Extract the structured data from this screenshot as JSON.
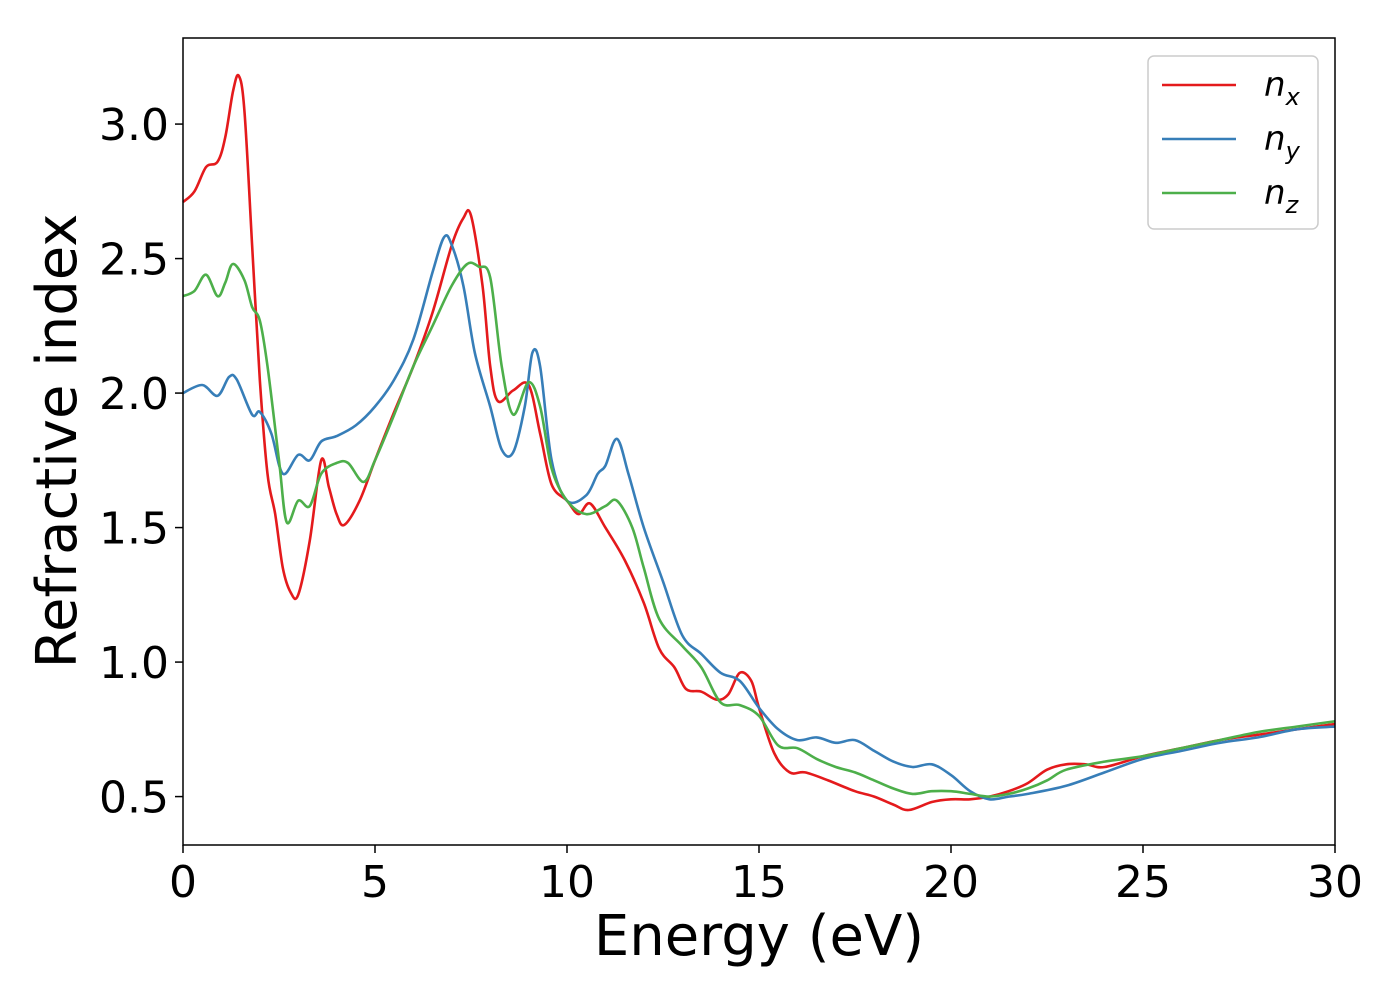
{
  "chart_data": {
    "type": "line",
    "xlabel": "Energy (eV)",
    "ylabel": "Refractive index",
    "xlim": [
      0,
      30
    ],
    "ylim": [
      0.32,
      3.32
    ],
    "xticks": [
      0,
      5,
      10,
      15,
      20,
      25,
      30
    ],
    "xtick_labels": [
      "0",
      "5",
      "10",
      "15",
      "20",
      "25",
      "30"
    ],
    "yticks": [
      0.5,
      1.0,
      1.5,
      2.0,
      2.5,
      3.0
    ],
    "ytick_labels": [
      "0.5",
      "1.0",
      "1.5",
      "2.0",
      "2.5",
      "3.0"
    ],
    "grid": false,
    "legend_position": "top-right",
    "series": [
      {
        "name": "n",
        "subscript": "x",
        "color": "#e41a1c",
        "points": [
          [
            0,
            2.71
          ],
          [
            0.3,
            2.75
          ],
          [
            0.6,
            2.84
          ],
          [
            0.9,
            2.86
          ],
          [
            1.1,
            2.95
          ],
          [
            1.3,
            3.12
          ],
          [
            1.45,
            3.18
          ],
          [
            1.6,
            3.05
          ],
          [
            1.8,
            2.55
          ],
          [
            2.0,
            2.05
          ],
          [
            2.2,
            1.7
          ],
          [
            2.4,
            1.55
          ],
          [
            2.6,
            1.35
          ],
          [
            2.8,
            1.26
          ],
          [
            3.0,
            1.25
          ],
          [
            3.3,
            1.45
          ],
          [
            3.6,
            1.75
          ],
          [
            3.8,
            1.65
          ],
          [
            4.0,
            1.55
          ],
          [
            4.2,
            1.51
          ],
          [
            4.6,
            1.6
          ],
          [
            5.0,
            1.75
          ],
          [
            5.5,
            1.93
          ],
          [
            6.0,
            2.1
          ],
          [
            6.5,
            2.3
          ],
          [
            7.0,
            2.55
          ],
          [
            7.3,
            2.65
          ],
          [
            7.5,
            2.66
          ],
          [
            7.8,
            2.4
          ],
          [
            8.0,
            2.1
          ],
          [
            8.2,
            1.97
          ],
          [
            8.6,
            2.01
          ],
          [
            9.0,
            2.03
          ],
          [
            9.3,
            1.85
          ],
          [
            9.6,
            1.66
          ],
          [
            10.0,
            1.6
          ],
          [
            10.3,
            1.55
          ],
          [
            10.6,
            1.59
          ],
          [
            11.0,
            1.5
          ],
          [
            11.5,
            1.38
          ],
          [
            12.0,
            1.22
          ],
          [
            12.4,
            1.05
          ],
          [
            12.8,
            0.98
          ],
          [
            13.1,
            0.9
          ],
          [
            13.5,
            0.89
          ],
          [
            13.9,
            0.86
          ],
          [
            14.2,
            0.88
          ],
          [
            14.5,
            0.96
          ],
          [
            14.8,
            0.93
          ],
          [
            15.0,
            0.83
          ],
          [
            15.4,
            0.66
          ],
          [
            15.8,
            0.59
          ],
          [
            16.2,
            0.59
          ],
          [
            16.8,
            0.56
          ],
          [
            17.5,
            0.52
          ],
          [
            18.0,
            0.5
          ],
          [
            18.5,
            0.47
          ],
          [
            18.9,
            0.45
          ],
          [
            19.5,
            0.48
          ],
          [
            20.0,
            0.49
          ],
          [
            20.5,
            0.49
          ],
          [
            21.0,
            0.5
          ],
          [
            21.5,
            0.52
          ],
          [
            22.0,
            0.55
          ],
          [
            22.5,
            0.6
          ],
          [
            23.0,
            0.62
          ],
          [
            23.5,
            0.62
          ],
          [
            24.0,
            0.61
          ],
          [
            25.0,
            0.65
          ],
          [
            26.0,
            0.68
          ],
          [
            27.0,
            0.71
          ],
          [
            28.0,
            0.73
          ],
          [
            29.0,
            0.75
          ],
          [
            30.0,
            0.77
          ]
        ]
      },
      {
        "name": "n",
        "subscript": "y",
        "color": "#377eb8",
        "points": [
          [
            0,
            2.0
          ],
          [
            0.5,
            2.03
          ],
          [
            0.9,
            1.99
          ],
          [
            1.2,
            2.06
          ],
          [
            1.4,
            2.05
          ],
          [
            1.8,
            1.92
          ],
          [
            2.0,
            1.93
          ],
          [
            2.3,
            1.85
          ],
          [
            2.6,
            1.7
          ],
          [
            3.0,
            1.77
          ],
          [
            3.3,
            1.75
          ],
          [
            3.6,
            1.82
          ],
          [
            4.0,
            1.84
          ],
          [
            4.5,
            1.88
          ],
          [
            5.0,
            1.95
          ],
          [
            5.5,
            2.05
          ],
          [
            6.0,
            2.2
          ],
          [
            6.5,
            2.45
          ],
          [
            6.8,
            2.58
          ],
          [
            7.0,
            2.55
          ],
          [
            7.3,
            2.4
          ],
          [
            7.6,
            2.15
          ],
          [
            8.0,
            1.95
          ],
          [
            8.3,
            1.79
          ],
          [
            8.6,
            1.78
          ],
          [
            8.9,
            1.95
          ],
          [
            9.1,
            2.15
          ],
          [
            9.3,
            2.1
          ],
          [
            9.6,
            1.75
          ],
          [
            10.0,
            1.6
          ],
          [
            10.5,
            1.62
          ],
          [
            10.8,
            1.7
          ],
          [
            11.0,
            1.73
          ],
          [
            11.3,
            1.83
          ],
          [
            11.6,
            1.7
          ],
          [
            12.0,
            1.5
          ],
          [
            12.5,
            1.3
          ],
          [
            13.0,
            1.1
          ],
          [
            13.5,
            1.03
          ],
          [
            14.0,
            0.96
          ],
          [
            14.5,
            0.93
          ],
          [
            15.0,
            0.83
          ],
          [
            15.5,
            0.75
          ],
          [
            16.0,
            0.71
          ],
          [
            16.5,
            0.72
          ],
          [
            17.0,
            0.7
          ],
          [
            17.5,
            0.71
          ],
          [
            18.0,
            0.67
          ],
          [
            18.5,
            0.63
          ],
          [
            19.0,
            0.61
          ],
          [
            19.5,
            0.62
          ],
          [
            20.0,
            0.58
          ],
          [
            20.5,
            0.52
          ],
          [
            21.0,
            0.49
          ],
          [
            21.5,
            0.5
          ],
          [
            22.0,
            0.51
          ],
          [
            23.0,
            0.54
          ],
          [
            24.0,
            0.59
          ],
          [
            25.0,
            0.64
          ],
          [
            26.0,
            0.67
          ],
          [
            27.0,
            0.7
          ],
          [
            28.0,
            0.72
          ],
          [
            29.0,
            0.75
          ],
          [
            30.0,
            0.76
          ]
        ]
      },
      {
        "name": "n",
        "subscript": "z",
        "color": "#4daf4a",
        "points": [
          [
            0,
            2.36
          ],
          [
            0.3,
            2.38
          ],
          [
            0.6,
            2.44
          ],
          [
            0.9,
            2.36
          ],
          [
            1.1,
            2.41
          ],
          [
            1.3,
            2.48
          ],
          [
            1.6,
            2.42
          ],
          [
            1.8,
            2.32
          ],
          [
            2.0,
            2.27
          ],
          [
            2.2,
            2.1
          ],
          [
            2.5,
            1.75
          ],
          [
            2.7,
            1.52
          ],
          [
            3.0,
            1.6
          ],
          [
            3.3,
            1.58
          ],
          [
            3.6,
            1.7
          ],
          [
            4.0,
            1.74
          ],
          [
            4.3,
            1.74
          ],
          [
            4.7,
            1.67
          ],
          [
            5.0,
            1.75
          ],
          [
            5.5,
            1.92
          ],
          [
            6.0,
            2.1
          ],
          [
            6.5,
            2.25
          ],
          [
            7.0,
            2.4
          ],
          [
            7.4,
            2.48
          ],
          [
            7.7,
            2.47
          ],
          [
            8.0,
            2.43
          ],
          [
            8.3,
            2.1
          ],
          [
            8.6,
            1.92
          ],
          [
            9.0,
            2.04
          ],
          [
            9.3,
            1.95
          ],
          [
            9.6,
            1.72
          ],
          [
            10.0,
            1.6
          ],
          [
            10.5,
            1.55
          ],
          [
            11.0,
            1.58
          ],
          [
            11.3,
            1.6
          ],
          [
            11.7,
            1.5
          ],
          [
            12.0,
            1.35
          ],
          [
            12.4,
            1.16
          ],
          [
            13.0,
            1.06
          ],
          [
            13.5,
            0.98
          ],
          [
            14.0,
            0.85
          ],
          [
            14.5,
            0.84
          ],
          [
            15.0,
            0.8
          ],
          [
            15.5,
            0.69
          ],
          [
            16.0,
            0.68
          ],
          [
            16.5,
            0.64
          ],
          [
            17.0,
            0.61
          ],
          [
            17.5,
            0.59
          ],
          [
            18.0,
            0.56
          ],
          [
            18.5,
            0.53
          ],
          [
            19.0,
            0.51
          ],
          [
            19.5,
            0.52
          ],
          [
            20.0,
            0.52
          ],
          [
            20.5,
            0.51
          ],
          [
            21.0,
            0.5
          ],
          [
            21.5,
            0.51
          ],
          [
            22.0,
            0.53
          ],
          [
            22.5,
            0.56
          ],
          [
            23.0,
            0.6
          ],
          [
            24.0,
            0.63
          ],
          [
            25.0,
            0.65
          ],
          [
            26.0,
            0.68
          ],
          [
            27.0,
            0.71
          ],
          [
            28.0,
            0.74
          ],
          [
            29.0,
            0.76
          ],
          [
            30.0,
            0.78
          ]
        ]
      }
    ]
  }
}
